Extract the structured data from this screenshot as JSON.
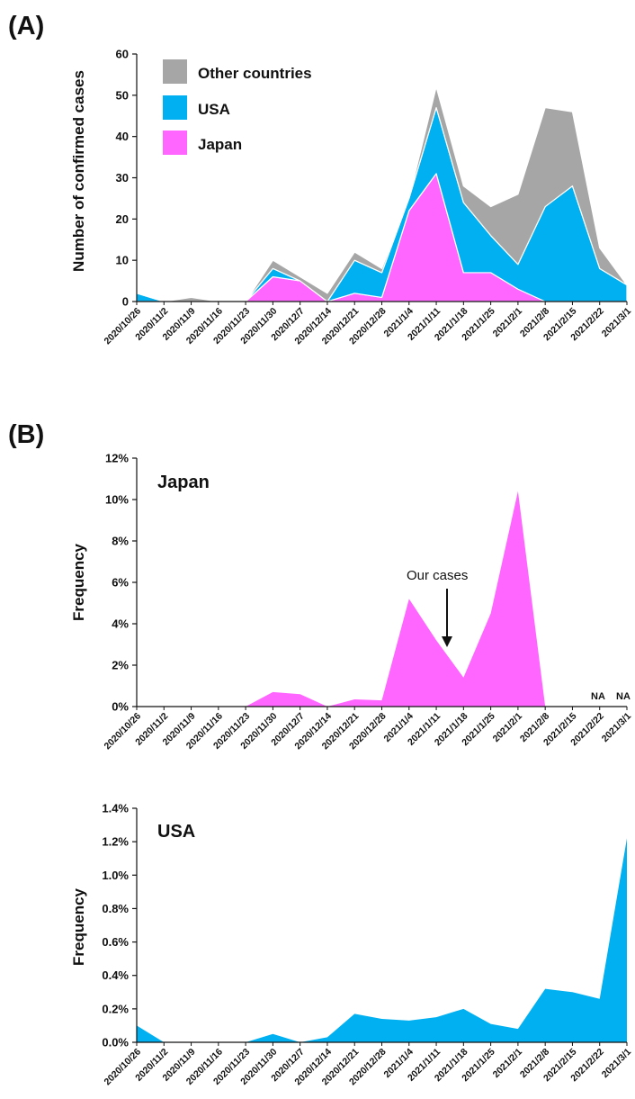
{
  "panel_labels": {
    "a": "(A)",
    "b": "(B)"
  },
  "chart_data": [
    {
      "type": "area",
      "stacked": true,
      "panel": "(A)",
      "ylabel": "Number of  confirmed cases",
      "ylim": [
        0,
        60
      ],
      "yticks": [
        "0",
        "10",
        "20",
        "30",
        "40",
        "50",
        "60"
      ],
      "legend_position": "top-left",
      "x": [
        "2020/10/26",
        "2020/11/2",
        "2020/11/9",
        "2020/11/16",
        "2020/11/23",
        "2020/11/30",
        "2020/12/7",
        "2020/12/14",
        "2020/12/21",
        "2020/12/28",
        "2021/1/4",
        "2021/1/11",
        "2021/1/18",
        "2021/1/25",
        "2021/2/1",
        "2021/2/8",
        "2021/2/15",
        "2021/2/22",
        "2021/3/1"
      ],
      "series": [
        {
          "name": "Japan",
          "color": "#ff66ff",
          "values": [
            0,
            0,
            0,
            0,
            0,
            6,
            5,
            0,
            2,
            1,
            22,
            31,
            7,
            7,
            3,
            0,
            0,
            0,
            0
          ]
        },
        {
          "name": "USA",
          "color": "#00b0f0",
          "values": [
            2,
            0,
            0,
            0,
            0,
            2,
            0,
            0,
            8,
            6,
            3,
            16,
            17,
            9,
            6,
            23,
            28,
            8,
            4
          ]
        },
        {
          "name": "Other countries",
          "color": "#a6a6a6",
          "values": [
            0,
            0,
            1,
            0,
            0,
            2,
            1,
            2,
            2,
            1,
            0,
            5,
            4,
            7,
            17,
            24,
            18,
            5,
            0
          ]
        }
      ],
      "legend": [
        "Other countries",
        "USA",
        "Japan"
      ]
    },
    {
      "type": "area",
      "panel": "(B)",
      "title": "Japan",
      "ylabel": "Frequency",
      "ylim": [
        0,
        12
      ],
      "yticks": [
        "0%",
        "2%",
        "4%",
        "6%",
        "8%",
        "10%",
        "12%"
      ],
      "x": [
        "2020/10/26",
        "2020/11/2",
        "2020/11/9",
        "2020/11/16",
        "2020/11/23",
        "2020/11/30",
        "2020/12/7",
        "2020/12/14",
        "2020/12/21",
        "2020/12/28",
        "2021/1/4",
        "2021/1/11",
        "2021/1/18",
        "2021/1/25",
        "2021/2/1",
        "2021/2/8",
        "2021/2/15",
        "2021/2/22",
        "2021/3/1"
      ],
      "color": "#ff66ff",
      "values": [
        0,
        0,
        0,
        0,
        0,
        0.7,
        0.6,
        0,
        0.35,
        0.3,
        5.2,
        3.2,
        1.4,
        4.5,
        10.4,
        0,
        0,
        null,
        null
      ],
      "na_labels": [
        "NA",
        "NA"
      ],
      "annotation": "Our cases"
    },
    {
      "type": "area",
      "title": "USA",
      "ylabel": "Frequency",
      "ylim": [
        0,
        1.4
      ],
      "yticks": [
        "0.0%",
        "0.2%",
        "0.4%",
        "0.6%",
        "0.8%",
        "1.0%",
        "1.2%",
        "1.4%"
      ],
      "x": [
        "2020/10/26",
        "2020/11/2",
        "2020/11/9",
        "2020/11/16",
        "2020/11/23",
        "2020/11/30",
        "2020/12/7",
        "2020/12/14",
        "2020/12/21",
        "2020/12/28",
        "2021/1/4",
        "2021/1/11",
        "2021/1/18",
        "2021/1/25",
        "2021/2/1",
        "2021/2/8",
        "2021/2/15",
        "2021/2/22",
        "2021/3/1"
      ],
      "color": "#00b0f0",
      "values": [
        0.1,
        0,
        0,
        0,
        0,
        0.05,
        0,
        0.03,
        0.17,
        0.14,
        0.13,
        0.15,
        0.2,
        0.11,
        0.08,
        0.32,
        0.3,
        0.26,
        1.22
      ]
    }
  ]
}
